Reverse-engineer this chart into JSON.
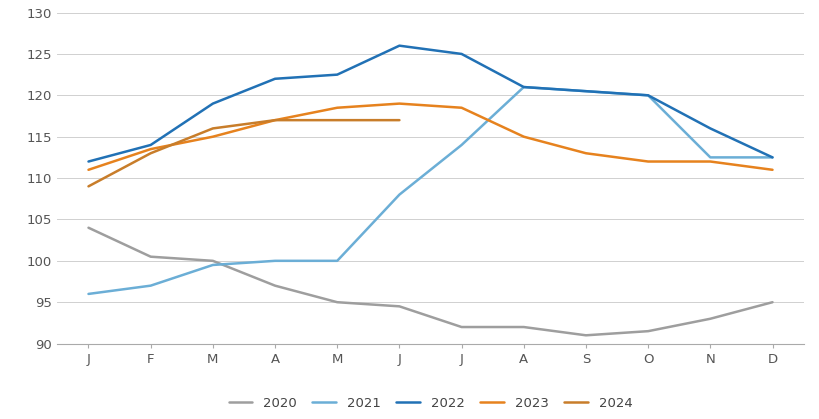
{
  "months": [
    "J",
    "F",
    "M",
    "A",
    "M",
    "J",
    "J",
    "A",
    "S",
    "O",
    "N",
    "D"
  ],
  "series": {
    "2020": [
      104,
      100.5,
      100,
      97,
      95,
      94.5,
      92,
      92,
      91,
      91.5,
      93,
      95
    ],
    "2021": [
      96,
      97,
      99.5,
      100,
      100,
      108,
      114,
      121,
      120.5,
      120,
      112.5,
      112.5
    ],
    "2022": [
      112,
      114,
      119,
      122,
      122.5,
      126,
      125,
      121,
      120.5,
      120,
      116,
      112.5
    ],
    "2023": [
      111,
      113.5,
      115,
      117,
      118.5,
      119,
      118.5,
      115,
      113,
      112,
      112,
      111
    ],
    "2024": [
      109,
      113,
      116,
      117,
      117,
      117,
      null,
      null,
      null,
      null,
      null,
      null
    ]
  },
  "colors": {
    "2020": "#9e9e9e",
    "2021": "#6baed6",
    "2022": "#2171b5",
    "2023": "#e6821e",
    "2024": "#c87d2a"
  },
  "ylim": [
    90,
    130
  ],
  "yticks": [
    90,
    95,
    100,
    105,
    110,
    115,
    120,
    125,
    130
  ],
  "background_color": "#ffffff",
  "grid_color": "#d0d0d0",
  "linewidth": 1.8,
  "legend_years": [
    "2020",
    "2021",
    "2022",
    "2023",
    "2024"
  ]
}
